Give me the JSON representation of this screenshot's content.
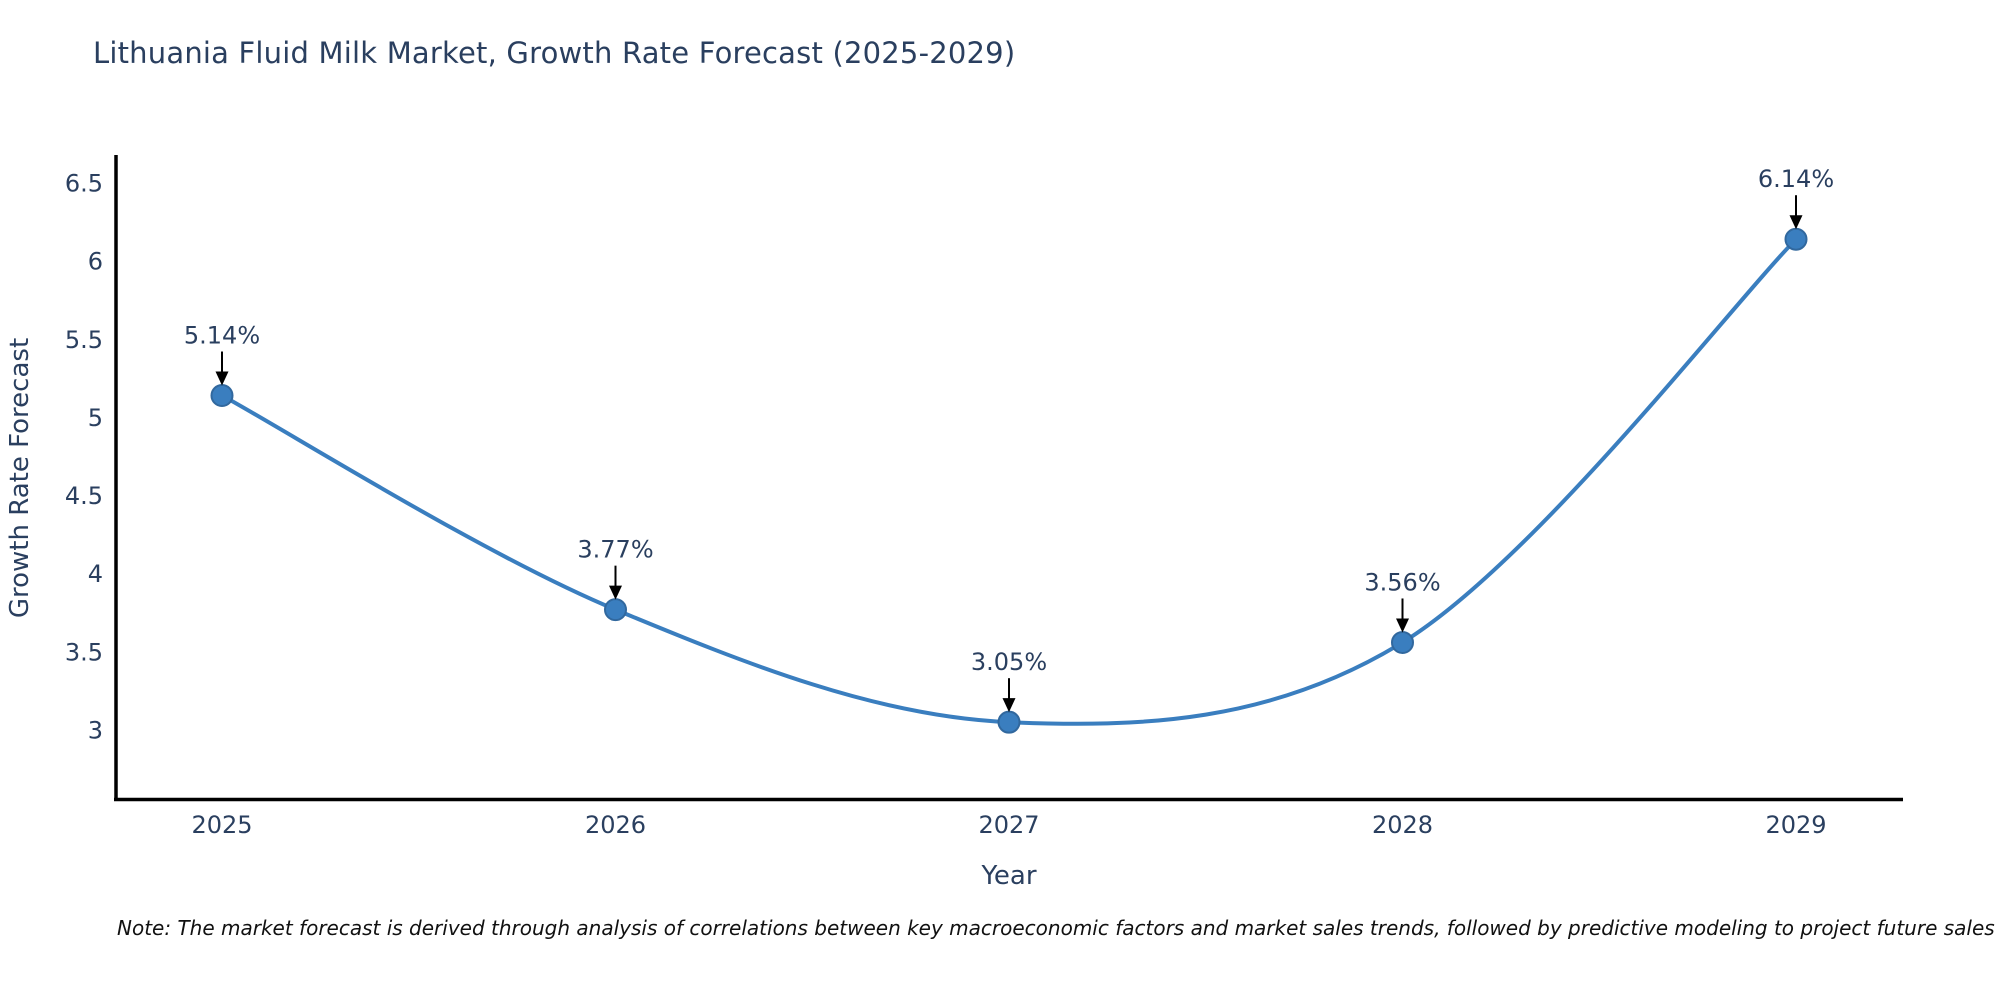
{
  "page": {
    "note": "Note: The market forecast is derived through analysis of correlations between key macroeconomic factors and market sales trends, followed by predictive modeling to project future sales"
  },
  "chart_data": {
    "type": "line",
    "title": "Lithuania Fluid Milk Market, Growth Rate Forecast (2025-2029)",
    "xlabel": "Year",
    "ylabel": "Growth Rate Forecast",
    "categories": [
      "2025",
      "2026",
      "2027",
      "2028",
      "2029"
    ],
    "values": [
      5.14,
      3.77,
      3.05,
      3.56,
      6.14
    ],
    "point_labels": [
      "5.14%",
      "3.77%",
      "3.05%",
      "3.56%",
      "6.14%"
    ],
    "y_ticks": [
      6.5,
      6,
      5.5,
      5,
      4.5,
      4,
      3.5,
      3
    ],
    "ylim": [
      2.54,
      6.63
    ],
    "line_shape": "spline",
    "marker": "circle",
    "annotation_style": "label-with-down-arrow",
    "grid": false,
    "legend_position": "none",
    "colors": {
      "line": "#3a7ebf",
      "marker_fill": "#3a7ebf",
      "marker_stroke": "#31689e",
      "text": "#2a3f5f",
      "axis_line": "#000000",
      "arrow": "#000000",
      "note": "#111111"
    }
  }
}
